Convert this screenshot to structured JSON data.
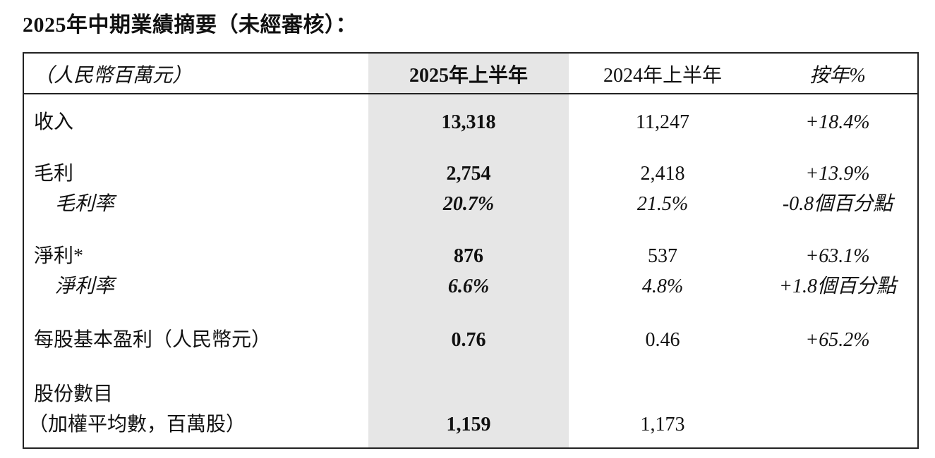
{
  "title": "2025年中期業績摘要（未經審核）：",
  "header": {
    "unit": "（人民幣百萬元）",
    "col_2025": "2025年上半年",
    "col_2024": "2024年上半年",
    "col_yoy": "按年%"
  },
  "rows": [
    {
      "label": "收入",
      "v2025": "13,318",
      "v2024": "11,247",
      "yoy": "+18.4%"
    },
    {
      "label": "毛利",
      "v2025": "2,754",
      "v2024": "2,418",
      "yoy": "+13.9%"
    },
    {
      "label": "毛利率",
      "v2025": "20.7%",
      "v2024": "21.5%",
      "yoy": "-0.8個百分點"
    },
    {
      "label": "淨利*",
      "v2025": "876",
      "v2024": "537",
      "yoy": "+63.1%"
    },
    {
      "label": "淨利率",
      "v2025": "6.6%",
      "v2024": "4.8%",
      "yoy": "+1.8個百分點"
    },
    {
      "label": "每股基本盈利（人民幣元）",
      "v2025": "0.76",
      "v2024": "0.46",
      "yoy": "+65.2%"
    },
    {
      "label": "股份數目",
      "label2": "（加權平均數，百萬股）",
      "v2025": "1,159",
      "v2024": "1,173"
    }
  ]
}
